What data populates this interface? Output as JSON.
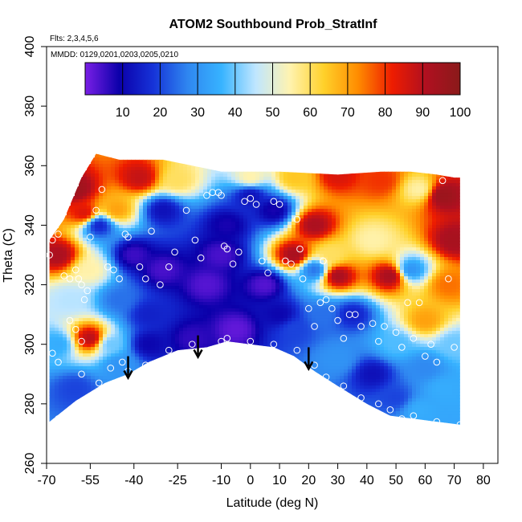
{
  "chart_data": {
    "type": "heatmap",
    "title": "ATOM2 Southbound Prob_StratInf",
    "flights_note": "Flts: 2,3,4,5,6",
    "dates_note": "MMDD: 0129,0201,0203,0205,0210",
    "xlabel": "Latitude (deg N)",
    "ylabel": "Theta (C)",
    "xlim": [
      -70,
      85
    ],
    "ylim": [
      260,
      400
    ],
    "x_ticks": [
      -70,
      -55,
      -40,
      -25,
      -10,
      0,
      10,
      20,
      30,
      40,
      50,
      60,
      70,
      80
    ],
    "x_tick_labels": [
      "-70",
      "-55",
      "-40",
      "-25",
      "-10",
      "0",
      "10",
      "20",
      "30",
      "40",
      "50",
      "60",
      "70",
      "80"
    ],
    "y_ticks": [
      260,
      280,
      300,
      320,
      340,
      360,
      380,
      400
    ],
    "y_tick_labels": [
      "260",
      "280",
      "300",
      "320",
      "340",
      "360",
      "380",
      "400"
    ],
    "colorbar": {
      "range": [
        0,
        100
      ],
      "ticks": [
        10,
        20,
        30,
        40,
        50,
        60,
        70,
        80,
        90,
        100
      ],
      "tick_labels": [
        "10",
        "20",
        "30",
        "40",
        "50",
        "60",
        "70",
        "80",
        "90",
        "100"
      ],
      "colors": [
        "#7a1fe6",
        "#0b00aa",
        "#1633d8",
        "#2f86f0",
        "#37b3ff",
        "#bfe6ff",
        "#fff3b0",
        "#ffd12a",
        "#ff8c00",
        "#ee1c00",
        "#b01020",
        "#8a1a1a"
      ]
    },
    "data_region": {
      "bottom_boundary": [
        [
          -69,
          274
        ],
        [
          -60,
          281
        ],
        [
          -50,
          287
        ],
        [
          -42,
          290
        ],
        [
          -35,
          294
        ],
        [
          -25,
          298
        ],
        [
          -15,
          299
        ],
        [
          -8,
          301
        ],
        [
          0,
          300
        ],
        [
          8,
          299
        ],
        [
          15,
          296
        ],
        [
          22,
          291
        ],
        [
          30,
          286
        ],
        [
          40,
          280
        ],
        [
          48,
          276
        ],
        [
          56,
          275
        ],
        [
          64,
          274
        ],
        [
          72,
          273
        ]
      ],
      "top_boundary": [
        [
          -69,
          335
        ],
        [
          -64,
          342
        ],
        [
          -58,
          356
        ],
        [
          -53,
          364
        ],
        [
          -45,
          362
        ],
        [
          -30,
          362
        ],
        [
          -20,
          360
        ],
        [
          -10,
          358
        ],
        [
          10,
          358
        ],
        [
          30,
          357
        ],
        [
          45,
          358
        ],
        [
          55,
          358
        ],
        [
          64,
          357
        ],
        [
          70,
          356
        ],
        [
          72,
          356
        ]
      ]
    },
    "field": [
      {
        "lat": -66,
        "theta": 330,
        "value": 92
      },
      {
        "lat": -60,
        "theta": 352,
        "value": 95
      },
      {
        "lat": -57,
        "theta": 344,
        "value": 85
      },
      {
        "lat": -52,
        "theta": 340,
        "value": 15
      },
      {
        "lat": -46,
        "theta": 345,
        "value": 70
      },
      {
        "lat": -38,
        "theta": 356,
        "value": 88
      },
      {
        "lat": -30,
        "theta": 345,
        "value": 12
      },
      {
        "lat": -25,
        "theta": 355,
        "value": 60
      },
      {
        "lat": -40,
        "theta": 330,
        "value": 5
      },
      {
        "lat": -30,
        "theta": 325,
        "value": 4
      },
      {
        "lat": -15,
        "theta": 320,
        "value": 3
      },
      {
        "lat": -8,
        "theta": 340,
        "value": 8
      },
      {
        "lat": 0,
        "theta": 350,
        "value": 12
      },
      {
        "lat": 8,
        "theta": 345,
        "value": 8
      },
      {
        "lat": 5,
        "theta": 320,
        "value": 3
      },
      {
        "lat": -5,
        "theta": 305,
        "value": 2
      },
      {
        "lat": 0,
        "theta": 356,
        "value": 55
      },
      {
        "lat": 15,
        "theta": 356,
        "value": 65
      },
      {
        "lat": 30,
        "theta": 357,
        "value": 85
      },
      {
        "lat": 45,
        "theta": 355,
        "value": 80
      },
      {
        "lat": 58,
        "theta": 352,
        "value": 55
      },
      {
        "lat": 66,
        "theta": 350,
        "value": 96
      },
      {
        "lat": 70,
        "theta": 335,
        "value": 93
      },
      {
        "lat": 68,
        "theta": 320,
        "value": 75
      },
      {
        "lat": 70,
        "theta": 300,
        "value": 40
      },
      {
        "lat": 66,
        "theta": 285,
        "value": 35
      },
      {
        "lat": 50,
        "theta": 300,
        "value": 38
      },
      {
        "lat": 60,
        "theta": 308,
        "value": 70
      },
      {
        "lat": 55,
        "theta": 325,
        "value": 30
      },
      {
        "lat": 42,
        "theta": 335,
        "value": 55
      },
      {
        "lat": 48,
        "theta": 323,
        "value": 93
      },
      {
        "lat": 30,
        "theta": 323,
        "value": 93
      },
      {
        "lat": 22,
        "theta": 325,
        "value": 25
      },
      {
        "lat": 15,
        "theta": 330,
        "value": 93
      },
      {
        "lat": 22,
        "theta": 340,
        "value": 92
      },
      {
        "lat": 28,
        "theta": 330,
        "value": 60
      },
      {
        "lat": 35,
        "theta": 310,
        "value": 15
      },
      {
        "lat": 25,
        "theta": 310,
        "value": 25
      },
      {
        "lat": 15,
        "theta": 305,
        "value": 20
      },
      {
        "lat": 30,
        "theta": 295,
        "value": 30
      },
      {
        "lat": 42,
        "theta": 290,
        "value": 12
      },
      {
        "lat": 50,
        "theta": 282,
        "value": 20
      },
      {
        "lat": 58,
        "theta": 278,
        "value": 35
      },
      {
        "lat": 60,
        "theta": 292,
        "value": 28
      },
      {
        "lat": -55,
        "theta": 325,
        "value": 55
      },
      {
        "lat": -62,
        "theta": 315,
        "value": 45
      },
      {
        "lat": -66,
        "theta": 300,
        "value": 35
      },
      {
        "lat": -55,
        "theta": 302,
        "value": 90
      },
      {
        "lat": -48,
        "theta": 300,
        "value": 40
      },
      {
        "lat": -60,
        "theta": 285,
        "value": 20
      },
      {
        "lat": -45,
        "theta": 293,
        "value": 30
      },
      {
        "lat": -35,
        "theta": 300,
        "value": 10
      },
      {
        "lat": -20,
        "theta": 302,
        "value": 6
      },
      {
        "lat": -45,
        "theta": 315,
        "value": 25
      },
      {
        "lat": -10,
        "theta": 330,
        "value": 4
      },
      {
        "lat": 10,
        "theta": 310,
        "value": 10
      },
      {
        "lat": -35,
        "theta": 310,
        "value": 15
      }
    ],
    "sample_points": [
      [
        -69,
        330
      ],
      [
        -68,
        335
      ],
      [
        -66,
        337
      ],
      [
        -64,
        323
      ],
      [
        -62,
        322
      ],
      [
        -60,
        325
      ],
      [
        -59,
        322
      ],
      [
        -58,
        320
      ],
      [
        -57,
        315
      ],
      [
        -56,
        318
      ],
      [
        -55,
        336
      ],
      [
        -53,
        345
      ],
      [
        -51,
        352
      ],
      [
        -49,
        326
      ],
      [
        -47,
        325
      ],
      [
        -45,
        322
      ],
      [
        -43,
        337
      ],
      [
        -42,
        336
      ],
      [
        -38,
        326
      ],
      [
        -36,
        322
      ],
      [
        -34,
        338
      ],
      [
        -31,
        320
      ],
      [
        -28,
        326
      ],
      [
        -26,
        331
      ],
      [
        -22,
        345
      ],
      [
        -19,
        335
      ],
      [
        -17,
        329
      ],
      [
        -15,
        350
      ],
      [
        -13,
        351
      ],
      [
        -11,
        351
      ],
      [
        -10,
        350
      ],
      [
        -9,
        333
      ],
      [
        -8,
        332
      ],
      [
        -6,
        327
      ],
      [
        -4,
        331
      ],
      [
        -2,
        348
      ],
      [
        0,
        349
      ],
      [
        2,
        347
      ],
      [
        4,
        328
      ],
      [
        6,
        324
      ],
      [
        8,
        348
      ],
      [
        10,
        347
      ],
      [
        12,
        328
      ],
      [
        14,
        327
      ],
      [
        16,
        342
      ],
      [
        17,
        332
      ],
      [
        18,
        322
      ],
      [
        20,
        312
      ],
      [
        22,
        306
      ],
      [
        24,
        314
      ],
      [
        25,
        328
      ],
      [
        26,
        315
      ],
      [
        28,
        312
      ],
      [
        30,
        308
      ],
      [
        32,
        302
      ],
      [
        34,
        310
      ],
      [
        36,
        310
      ],
      [
        38,
        306
      ],
      [
        42,
        307
      ],
      [
        44,
        301
      ],
      [
        46,
        306
      ],
      [
        50,
        304
      ],
      [
        52,
        299
      ],
      [
        54,
        314
      ],
      [
        56,
        302
      ],
      [
        58,
        314
      ],
      [
        60,
        296
      ],
      [
        62,
        300
      ],
      [
        64,
        294
      ],
      [
        66,
        355
      ],
      [
        68,
        322
      ],
      [
        70,
        299
      ],
      [
        -68,
        297
      ],
      [
        -66,
        294
      ],
      [
        -58,
        290
      ],
      [
        -56,
        281
      ],
      [
        -54,
        283
      ],
      [
        -52,
        287
      ],
      [
        -48,
        292
      ],
      [
        -44,
        294
      ],
      [
        -42,
        291
      ],
      [
        -36,
        293
      ],
      [
        -28,
        298
      ],
      [
        -20,
        300
      ],
      [
        -10,
        301
      ],
      [
        -8,
        302
      ],
      [
        0,
        301
      ],
      [
        8,
        300
      ],
      [
        16,
        298
      ],
      [
        22,
        293
      ],
      [
        26,
        289
      ],
      [
        32,
        286
      ],
      [
        38,
        282
      ],
      [
        44,
        280
      ],
      [
        48,
        278
      ],
      [
        52,
        275
      ],
      [
        56,
        276
      ],
      [
        64,
        274
      ],
      [
        72,
        273
      ],
      [
        -66,
        275
      ],
      [
        -62,
        308
      ],
      [
        -60,
        305
      ],
      [
        -58,
        301
      ]
    ],
    "arrows": [
      {
        "lat": -42,
        "theta_top": 296,
        "theta_tip": 289
      },
      {
        "lat": -18,
        "theta_top": 303,
        "theta_tip": 296
      },
      {
        "lat": 20,
        "theta_top": 299,
        "theta_tip": 292
      }
    ]
  }
}
